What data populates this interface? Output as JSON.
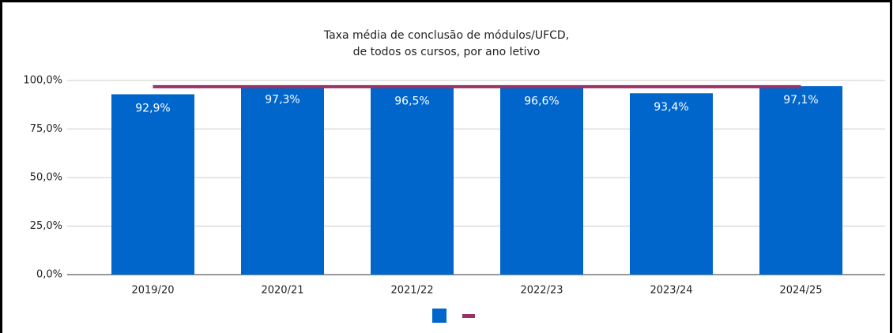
{
  "chart_data": {
    "type": "bar",
    "title": [
      "Taxa média de conclusão de módulos/UFCD,",
      "de todos os cursos,  por ano letivo"
    ],
    "categories": [
      "2019/20",
      "2020/21",
      "2021/22",
      "2022/23",
      "2023/24",
      "2024/25"
    ],
    "series": [
      {
        "type": "bar",
        "color": "#0066cc",
        "values": [
          92.9,
          97.3,
          96.5,
          96.6,
          93.4,
          97.1
        ],
        "value_labels": [
          "92,9%",
          "97,3%",
          "96,5%",
          "96,6%",
          "93,4%",
          "97,1%"
        ]
      },
      {
        "type": "line",
        "color": "#993366",
        "values": [
          96.8,
          96.8,
          96.8,
          96.8,
          96.8,
          96.8
        ]
      }
    ],
    "ylim": [
      0,
      100
    ],
    "yticks": [
      {
        "value": 0,
        "label": "0,0%"
      },
      {
        "value": 25,
        "label": "25,0%"
      },
      {
        "value": 50,
        "label": "50,0%"
      },
      {
        "value": 75,
        "label": "75,0%"
      },
      {
        "value": 100,
        "label": "100,0%"
      }
    ],
    "grid": true
  }
}
